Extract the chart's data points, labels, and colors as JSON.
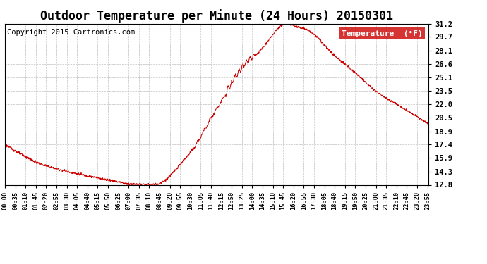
{
  "title": "Outdoor Temperature per Minute (24 Hours) 20150301",
  "copyright_text": "Copyright 2015 Cartronics.com",
  "legend_label": "Temperature  (°F)",
  "line_color": "#cc0000",
  "background_color": "#ffffff",
  "plot_bg_color": "#ffffff",
  "grid_color": "#c0c0c0",
  "ytick_labels": [
    "12.8",
    "14.3",
    "15.9",
    "17.4",
    "18.9",
    "20.5",
    "22.0",
    "23.5",
    "25.1",
    "26.6",
    "28.1",
    "29.7",
    "31.2"
  ],
  "ytick_values": [
    12.8,
    14.3,
    15.9,
    17.4,
    18.9,
    20.5,
    22.0,
    23.5,
    25.1,
    26.6,
    28.1,
    29.7,
    31.2
  ],
  "ymin": 12.8,
  "ymax": 31.2,
  "xtick_labels": [
    "00:00",
    "00:35",
    "01:10",
    "01:45",
    "02:20",
    "02:55",
    "03:30",
    "04:05",
    "04:40",
    "05:15",
    "05:50",
    "06:25",
    "07:00",
    "07:35",
    "08:10",
    "08:45",
    "09:20",
    "09:55",
    "10:30",
    "11:05",
    "11:40",
    "12:15",
    "12:50",
    "13:25",
    "14:00",
    "14:35",
    "15:10",
    "15:45",
    "16:20",
    "16:55",
    "17:30",
    "18:05",
    "18:40",
    "19:15",
    "19:50",
    "20:25",
    "21:00",
    "21:35",
    "22:10",
    "22:45",
    "23:20",
    "23:55"
  ],
  "legend_bg_color": "#cc0000",
  "legend_text_color": "#ffffff",
  "title_fontsize": 12,
  "axis_fontsize": 7.5,
  "copyright_fontsize": 7.5,
  "control_times": [
    0,
    60,
    120,
    180,
    240,
    300,
    330,
    360,
    385,
    395,
    410,
    440,
    480,
    510,
    540,
    560,
    580,
    600,
    630,
    660,
    690,
    720,
    750,
    770,
    790,
    820,
    860,
    900,
    950,
    980,
    1020,
    1060,
    1100,
    1140,
    1200,
    1260,
    1320,
    1380,
    1439
  ],
  "control_temps": [
    17.4,
    16.2,
    15.2,
    14.6,
    14.1,
    13.7,
    13.5,
    13.3,
    13.15,
    13.08,
    12.95,
    12.85,
    12.82,
    12.85,
    13.2,
    13.8,
    14.5,
    15.3,
    16.5,
    18.0,
    19.8,
    21.5,
    23.2,
    24.5,
    25.5,
    26.8,
    27.9,
    29.5,
    31.2,
    31.0,
    30.6,
    29.7,
    28.2,
    27.0,
    25.3,
    23.5,
    22.2,
    21.0,
    19.7
  ]
}
